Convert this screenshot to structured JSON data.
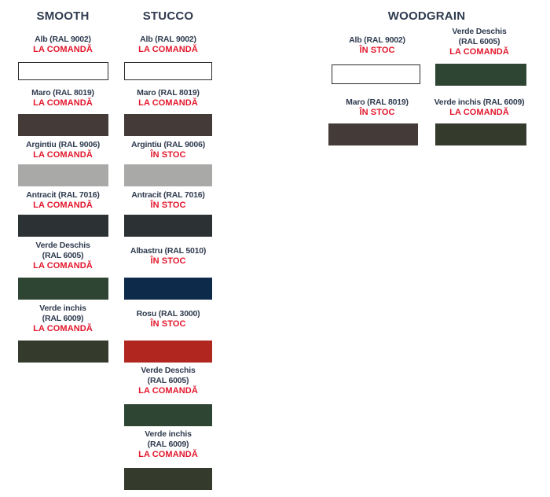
{
  "columns": [
    {
      "title": "SMOOTH",
      "items": [
        {
          "label": "Alb (RAL 9002)",
          "status": "LA COMANDĂ",
          "color": "#ffffff"
        },
        {
          "label": "Maro  (RAL 8019)",
          "status": "LA COMANDĂ",
          "color": "#443b38"
        },
        {
          "label": "Argintiu (RAL 9006)",
          "status": "LA COMANDĂ",
          "color": "#a9a9a7"
        },
        {
          "label": "Antracit (RAL 7016)",
          "status": "LA COMANDĂ",
          "color": "#2c3134"
        },
        {
          "label": "Verde Deschis\n(RAL 6005)",
          "status": "LA COMANDĂ",
          "color": "#2f4533"
        },
        {
          "label": "Verde inchis\n(RAL 6009)",
          "status": "LA COMANDĂ",
          "color": "#343a2c"
        }
      ]
    },
    {
      "title": "STUCCO",
      "items": [
        {
          "label": "Alb (RAL 9002)",
          "status": "LA COMANDĂ",
          "color": "#ffffff"
        },
        {
          "label": "Maro  (RAL 8019)",
          "status": "LA COMANDĂ",
          "color": "#443b38"
        },
        {
          "label": "Argintiu (RAL 9006)",
          "status": "ÎN STOC",
          "color": "#a9a9a7"
        },
        {
          "label": "Antracit (RAL 7016)",
          "status": "ÎN STOC",
          "color": "#2c3134"
        },
        {
          "label": "Albastru (RAL 5010)",
          "status": "ÎN STOC",
          "color": "#0e2a4a"
        },
        {
          "label": "Rosu (RAL 3000)",
          "status": "ÎN STOC",
          "color": "#b22620"
        },
        {
          "label": "Verde Deschis\n(RAL 6005)",
          "status": "LA COMANDĂ",
          "color": "#2f4533"
        },
        {
          "label": "Verde inchis\n(RAL 6009)",
          "status": "LA COMANDĂ",
          "color": "#343a2c"
        }
      ]
    },
    {
      "title": "WOODGRAIN",
      "items": [
        {
          "label": "Alb (RAL 9002)",
          "status": "ÎN STOC",
          "color": "#ffffff"
        },
        {
          "label": "Verde Deschis\n(RAL 6005)",
          "status": "LA COMANDĂ",
          "color": "#2f4533"
        },
        {
          "label": "Maro (RAL 8019)",
          "status": "ÎN STOC",
          "color": "#443b38"
        },
        {
          "label": "Verde inchis (RAL 6009)",
          "status": "LA COMANDĂ",
          "color": "#343a2c"
        }
      ]
    }
  ]
}
